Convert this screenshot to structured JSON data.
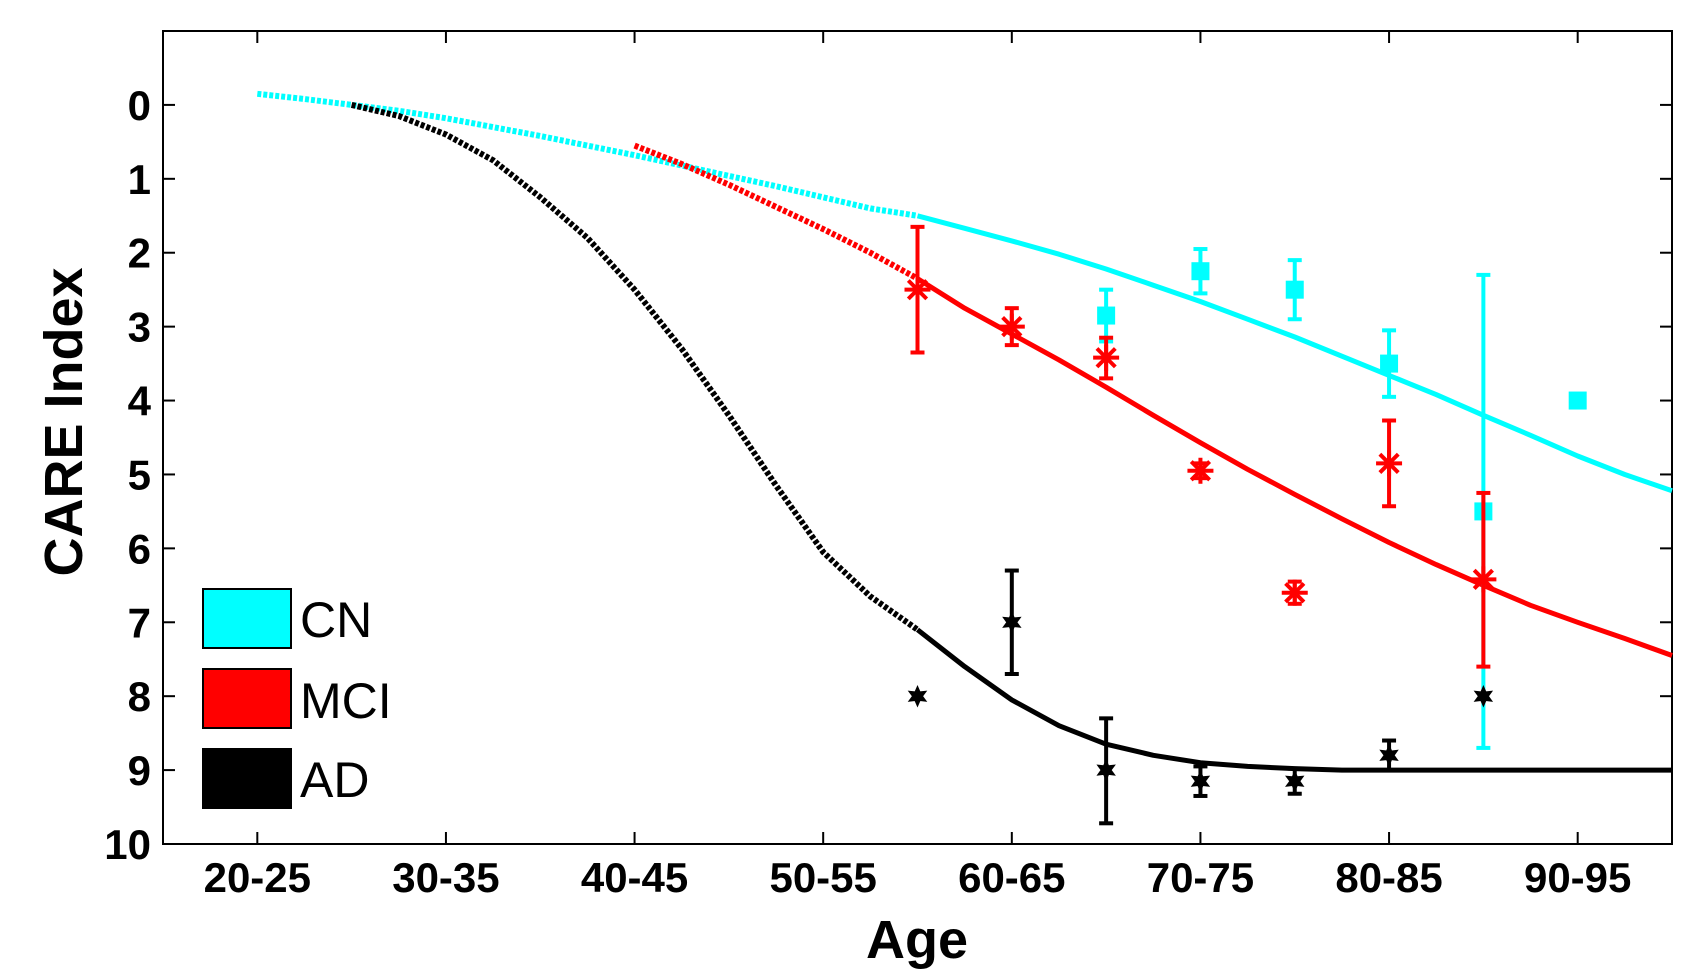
{
  "chart_data": {
    "type": "line",
    "title": "",
    "xlabel": "Age",
    "ylabel": "CARE Index",
    "x_tick_labels": [
      "20-25",
      "30-35",
      "40-45",
      "50-55",
      "60-65",
      "70-75",
      "80-85",
      "90-95"
    ],
    "x_tick_positions": [
      22.5,
      32.5,
      42.5,
      52.5,
      62.5,
      72.5,
      82.5,
      92.5
    ],
    "xlim": [
      17.5,
      97.5
    ],
    "y_ticks": [
      0,
      1,
      2,
      3,
      4,
      5,
      6,
      7,
      8,
      9,
      10
    ],
    "ylim": [
      10,
      -1
    ],
    "y_reversed": true,
    "grid": false,
    "legend": {
      "placement": "bottom-left",
      "entries": [
        {
          "label": "CN",
          "color": "#00ffff"
        },
        {
          "label": "MCI",
          "color": "#ff0000"
        },
        {
          "label": "AD",
          "color": "#000000"
        }
      ]
    },
    "series": [
      {
        "name": "CN",
        "color": "#00ffff",
        "marker": "square",
        "curve_extrapolated": [
          [
            22.5,
            -0.15
          ],
          [
            25,
            -0.08
          ],
          [
            27.5,
            0.0
          ],
          [
            30,
            0.08
          ],
          [
            32.5,
            0.18
          ],
          [
            35,
            0.3
          ],
          [
            37.5,
            0.42
          ],
          [
            40,
            0.55
          ],
          [
            42.5,
            0.68
          ],
          [
            45,
            0.82
          ],
          [
            47.5,
            0.96
          ],
          [
            50,
            1.1
          ],
          [
            52.5,
            1.25
          ],
          [
            55,
            1.4
          ],
          [
            57.5,
            1.5
          ]
        ],
        "curve_fit": [
          [
            57.5,
            1.5
          ],
          [
            60,
            1.67
          ],
          [
            62.5,
            1.84
          ],
          [
            65,
            2.02
          ],
          [
            67.5,
            2.22
          ],
          [
            70,
            2.44
          ],
          [
            72.5,
            2.66
          ],
          [
            75,
            2.9
          ],
          [
            77.5,
            3.14
          ],
          [
            80,
            3.4
          ],
          [
            82.5,
            3.66
          ],
          [
            85,
            3.92
          ],
          [
            87.5,
            4.2
          ],
          [
            90,
            4.47
          ],
          [
            92.5,
            4.75
          ],
          [
            95,
            5.0
          ],
          [
            97.5,
            5.22
          ]
        ],
        "points": [
          {
            "x": 67.5,
            "y": 2.85,
            "err_low": 2.5,
            "err_high": 3.2
          },
          {
            "x": 72.5,
            "y": 2.25,
            "err_low": 1.95,
            "err_high": 2.55
          },
          {
            "x": 77.5,
            "y": 2.5,
            "err_low": 2.1,
            "err_high": 2.9
          },
          {
            "x": 82.5,
            "y": 3.5,
            "err_low": 3.05,
            "err_high": 3.95
          },
          {
            "x": 87.5,
            "y": 5.5,
            "err_low": 2.3,
            "err_high": 8.7
          },
          {
            "x": 92.5,
            "y": 4.0
          }
        ]
      },
      {
        "name": "MCI",
        "color": "#ff0000",
        "marker": "asterisk",
        "curve_extrapolated": [
          [
            42.5,
            0.55
          ],
          [
            45,
            0.8
          ],
          [
            47.5,
            1.08
          ],
          [
            50,
            1.38
          ],
          [
            52.5,
            1.68
          ],
          [
            55,
            2.0
          ],
          [
            57.5,
            2.35
          ]
        ],
        "curve_fit": [
          [
            57.5,
            2.35
          ],
          [
            60,
            2.75
          ],
          [
            62.5,
            3.1
          ],
          [
            65,
            3.45
          ],
          [
            67.5,
            3.82
          ],
          [
            70,
            4.2
          ],
          [
            72.5,
            4.57
          ],
          [
            75,
            4.93
          ],
          [
            77.5,
            5.27
          ],
          [
            80,
            5.6
          ],
          [
            82.5,
            5.92
          ],
          [
            85,
            6.22
          ],
          [
            87.5,
            6.5
          ],
          [
            90,
            6.77
          ],
          [
            92.5,
            7.0
          ],
          [
            95,
            7.22
          ],
          [
            97.5,
            7.45
          ]
        ],
        "points": [
          {
            "x": 57.5,
            "y": 2.5,
            "err_low": 1.65,
            "err_high": 3.35
          },
          {
            "x": 62.5,
            "y": 3.0,
            "err_low": 2.75,
            "err_high": 3.25
          },
          {
            "x": 67.5,
            "y": 3.42,
            "err_low": 3.15,
            "err_high": 3.7
          },
          {
            "x": 72.5,
            "y": 4.95,
            "err_low": 4.85,
            "err_high": 5.05
          },
          {
            "x": 77.5,
            "y": 6.6,
            "err_low": 6.45,
            "err_high": 6.75
          },
          {
            "x": 82.5,
            "y": 4.85,
            "err_low": 4.27,
            "err_high": 5.43
          },
          {
            "x": 87.5,
            "y": 6.42,
            "err_low": 5.25,
            "err_high": 7.6
          }
        ]
      },
      {
        "name": "AD",
        "color": "#000000",
        "marker": "hexagram",
        "curve_extrapolated": [
          [
            27.5,
            0.0
          ],
          [
            30,
            0.15
          ],
          [
            32.5,
            0.4
          ],
          [
            35,
            0.75
          ],
          [
            37.5,
            1.25
          ],
          [
            40,
            1.8
          ],
          [
            42.5,
            2.5
          ],
          [
            45,
            3.3
          ],
          [
            47.5,
            4.2
          ],
          [
            50,
            5.15
          ],
          [
            52.5,
            6.05
          ],
          [
            55,
            6.65
          ],
          [
            57.5,
            7.1
          ]
        ],
        "curve_fit": [
          [
            57.5,
            7.1
          ],
          [
            60,
            7.6
          ],
          [
            62.5,
            8.05
          ],
          [
            65,
            8.4
          ],
          [
            67.5,
            8.65
          ],
          [
            70,
            8.8
          ],
          [
            72.5,
            8.9
          ],
          [
            75,
            8.95
          ],
          [
            77.5,
            8.98
          ],
          [
            80,
            9.0
          ],
          [
            82.5,
            9.0
          ],
          [
            87.5,
            9.0
          ],
          [
            92.5,
            9.0
          ],
          [
            97.5,
            9.0
          ]
        ],
        "points": [
          {
            "x": 57.5,
            "y": 8.0
          },
          {
            "x": 62.5,
            "y": 7.0,
            "err_low": 6.3,
            "err_high": 7.7
          },
          {
            "x": 67.5,
            "y": 9.0,
            "err_low": 8.3,
            "err_high": 9.72
          },
          {
            "x": 72.5,
            "y": 9.15,
            "err_low": 8.95,
            "err_high": 9.35
          },
          {
            "x": 77.5,
            "y": 9.15,
            "err_low": 8.98,
            "err_high": 9.32
          },
          {
            "x": 82.5,
            "y": 8.8,
            "err_low": 8.6,
            "err_high": 9.0
          },
          {
            "x": 87.5,
            "y": 8.0
          }
        ]
      }
    ]
  }
}
